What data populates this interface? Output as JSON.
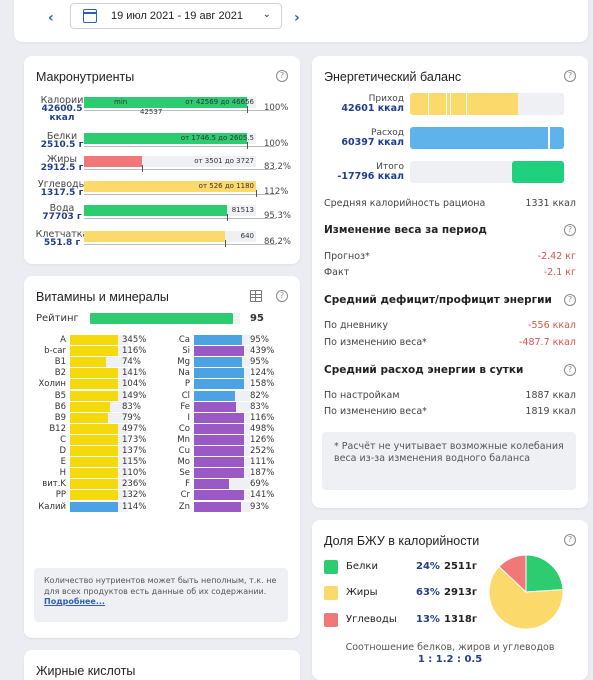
{
  "datebar": {
    "range": "19 июл 2021 - 19 авг 2021"
  },
  "macro": {
    "title": "Макронутриенты",
    "rows": [
      {
        "name": "Калории",
        "value": "42600.5",
        "unit": "ккал",
        "range": "от 42569 до 46656",
        "pct": "100%",
        "color": "#2ecc71",
        "fill": 0.95,
        "min": "min",
        "sub": "42537"
      },
      {
        "name": "Белки",
        "value": "2510.5 г",
        "range": "от 1746.5 до 2605.5",
        "pct": "100%",
        "color": "#2ecc71",
        "fill": 0.95
      },
      {
        "name": "Жиры",
        "value": "2912.5 г",
        "range": "от 3501  до 3727",
        "pct": "83.2%",
        "color": "#f07878",
        "fill": 0.34
      },
      {
        "name": "Углеводы",
        "value": "1317.5 г",
        "range": "от 526  до 1180",
        "pct": "112%",
        "color": "#fbd96b",
        "fill": 1.0
      },
      {
        "name": "Вода",
        "value": "77703 г",
        "range": "81513",
        "pct": "95.3%",
        "color": "#2ecc71",
        "fill": 0.83
      },
      {
        "name": "Клетчатка",
        "value": "551.8 г",
        "range": "640",
        "pct": "86.2%",
        "color": "#fbd96b",
        "fill": 0.82
      }
    ]
  },
  "vitamins": {
    "title": "Витамины и минералы",
    "rating_label": "Рейтинг",
    "rating_value": "95",
    "rating_fill": 0.95,
    "left": [
      {
        "n": "A",
        "p": "345%",
        "f": 1.0
      },
      {
        "n": "b-car",
        "p": "116%",
        "f": 1.0
      },
      {
        "n": "B1",
        "p": "74%",
        "f": 0.74
      },
      {
        "n": "B2",
        "p": "141%",
        "f": 1.0
      },
      {
        "n": "Холин",
        "p": "104%",
        "f": 1.0
      },
      {
        "n": "B5",
        "p": "149%",
        "f": 1.0
      },
      {
        "n": "B6",
        "p": "83%",
        "f": 0.83
      },
      {
        "n": "B9",
        "p": "79%",
        "f": 0.79
      },
      {
        "n": "B12",
        "p": "497%",
        "f": 1.0
      },
      {
        "n": "C",
        "p": "173%",
        "f": 1.0
      },
      {
        "n": "D",
        "p": "137%",
        "f": 1.0
      },
      {
        "n": "E",
        "p": "115%",
        "f": 1.0
      },
      {
        "n": "H",
        "p": "110%",
        "f": 1.0
      },
      {
        "n": "вит.K",
        "p": "236%",
        "f": 1.0
      },
      {
        "n": "PP",
        "p": "132%",
        "f": 1.0
      },
      {
        "n": "Калий",
        "p": "114%",
        "f": 1.0,
        "blue": true
      }
    ],
    "right": [
      {
        "n": "Ca",
        "p": "95%",
        "f": 0.95,
        "c": "#4ba3e3"
      },
      {
        "n": "Si",
        "p": "439%",
        "f": 1.0,
        "c": "#9b59c6"
      },
      {
        "n": "Mg",
        "p": "95%",
        "f": 0.95,
        "c": "#4ba3e3"
      },
      {
        "n": "Na",
        "p": "124%",
        "f": 1.0,
        "c": "#4ba3e3"
      },
      {
        "n": "P",
        "p": "158%",
        "f": 1.0,
        "c": "#4ba3e3"
      },
      {
        "n": "Cl",
        "p": "82%",
        "f": 0.82,
        "c": "#4ba3e3"
      },
      {
        "n": "Fe",
        "p": "83%",
        "f": 0.83,
        "c": "#9b59c6"
      },
      {
        "n": "I",
        "p": "116%",
        "f": 1.0,
        "c": "#9b59c6"
      },
      {
        "n": "Co",
        "p": "498%",
        "f": 1.0,
        "c": "#9b59c6"
      },
      {
        "n": "Mn",
        "p": "126%",
        "f": 1.0,
        "c": "#9b59c6"
      },
      {
        "n": "Cu",
        "p": "252%",
        "f": 1.0,
        "c": "#9b59c6"
      },
      {
        "n": "Mo",
        "p": "111%",
        "f": 1.0,
        "c": "#9b59c6"
      },
      {
        "n": "Se",
        "p": "187%",
        "f": 1.0,
        "c": "#9b59c6"
      },
      {
        "n": "F",
        "p": "69%",
        "f": 0.69,
        "c": "#9b59c6"
      },
      {
        "n": "Cr",
        "p": "141%",
        "f": 1.0,
        "c": "#9b59c6"
      },
      {
        "n": "Zn",
        "p": "93%",
        "f": 0.93,
        "c": "#9b59c6"
      }
    ],
    "note_text": "Количество нутриентов может быть неполным, т.к. не для всех продуктов есть данные об их содержании.",
    "note_link": "Подробнее..."
  },
  "fatty": {
    "title": "Жирные кислоты"
  },
  "energy": {
    "title": "Энергетический баланс",
    "income_label": "Приход",
    "income_value": "42601 ккал",
    "expense_label": "Расход",
    "expense_value": "60397 ккал",
    "total_label": "Итого",
    "total_value": "-17796 ккал",
    "avg_label": "Средняя калорийность рациона",
    "avg_value": "1331 ккал",
    "weight_title": "Изменение веса за период",
    "forecast_label": "Прогноз*",
    "forecast_value": "-2.42 кг",
    "fact_label": "Факт",
    "fact_value": "-2.1 кг",
    "deficit_title": "Средний дефицит/профицит энергии",
    "by_diary_label": "По дневнику",
    "by_diary_value": "-556 ккал",
    "by_weight_label": "По изменению веса*",
    "by_weight_value": "-487.7 ккал",
    "expense_title": "Средний расход энергии в сутки",
    "by_settings_label": "По настройкам",
    "by_settings_value": "1887 ккал",
    "by_weight2_label": "По изменению веса*",
    "by_weight2_value": "1819 ккал",
    "note": "* Расчёт не учитывает возможные колебания веса из-за изменения водного баланса"
  },
  "bju": {
    "title": "Доля БЖУ в калорийности",
    "items": [
      {
        "name": "Белки",
        "pct": "24%",
        "grams": "2511г",
        "color": "#2ecc71",
        "share": 24
      },
      {
        "name": "Жиры",
        "pct": "63%",
        "grams": "2913г",
        "color": "#fbd96b",
        "share": 63
      },
      {
        "name": "Углеводы",
        "pct": "13%",
        "grams": "1318г",
        "color": "#f07878",
        "share": 13
      }
    ],
    "ratio_label": "Соотношение белков, жиров и углеводов",
    "ratio_value": "1 : 1.2 : 0.5"
  }
}
